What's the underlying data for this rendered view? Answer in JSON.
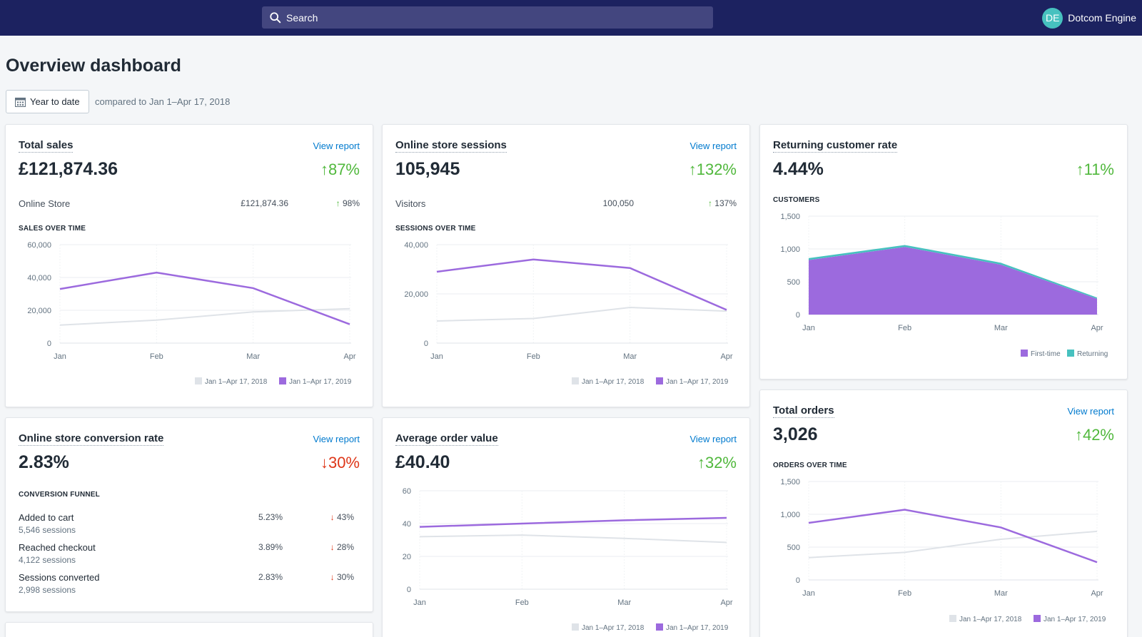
{
  "topbar": {
    "search_placeholder": "Search",
    "avatar_initials": "DE",
    "store_name": "Dotcom Engine"
  },
  "page": {
    "title": "Overview dashboard",
    "date_range_label": "Year to date",
    "compare_text": "compared to Jan 1–Apr 17, 2018"
  },
  "colors": {
    "current": "#9c6ade",
    "previous": "#dfe3e8",
    "returning": "#47c1bf",
    "up": "#50b83c",
    "down": "#de3618",
    "link": "#007ace",
    "topbar": "#1c2260"
  },
  "cards": {
    "total_sales": {
      "title": "Total sales",
      "link": "View report",
      "value": "£121,874.36",
      "change": "87%",
      "row_label": "Online Store",
      "row_value": "£121,874.36",
      "row_change": "98%",
      "section": "SALES OVER TIME"
    },
    "sessions": {
      "title": "Online store sessions",
      "link": "View report",
      "value": "105,945",
      "change": "132%",
      "row_label": "Visitors",
      "row_value": "100,050",
      "row_change": "137%",
      "section": "SESSIONS OVER TIME"
    },
    "returning": {
      "title": "Returning customer rate",
      "value": "4.44%",
      "change": "11%",
      "section": "CUSTOMERS"
    },
    "conversion": {
      "title": "Online store conversion rate",
      "link": "View report",
      "value": "2.83%",
      "change": "30%",
      "section": "CONVERSION FUNNEL",
      "funnel": [
        {
          "name": "Added to cart",
          "sessions": "5,546 sessions",
          "pct": "5.23%",
          "change": "43%"
        },
        {
          "name": "Reached checkout",
          "sessions": "4,122 sessions",
          "pct": "3.89%",
          "change": "28%"
        },
        {
          "name": "Sessions converted",
          "sessions": "2,998 sessions",
          "pct": "2.83%",
          "change": "30%"
        }
      ]
    },
    "aov": {
      "title": "Average order value",
      "link": "View report",
      "value": "£40.40",
      "change": "32%"
    },
    "orders": {
      "title": "Total orders",
      "link": "View report",
      "value": "3,026",
      "change": "42%",
      "section": "ORDERS OVER TIME"
    }
  },
  "chart_data": [
    {
      "id": "sales",
      "type": "line",
      "categories": [
        "Jan",
        "Feb",
        "Mar",
        "Apr"
      ],
      "yticks": [
        "0",
        "20,000",
        "40,000",
        "60,000"
      ],
      "ylim": [
        0,
        60000
      ],
      "series": [
        {
          "name": "Jan 1–Apr 17, 2018",
          "values": [
            11000,
            14000,
            19000,
            21000
          ]
        },
        {
          "name": "Jan 1–Apr 17, 2019",
          "values": [
            33000,
            43000,
            33500,
            11500
          ]
        }
      ],
      "legend": "bottom-right",
      "grid": true
    },
    {
      "id": "sessions",
      "type": "line",
      "categories": [
        "Jan",
        "Feb",
        "Mar",
        "Apr"
      ],
      "yticks": [
        "0",
        "20,000",
        "40,000"
      ],
      "ylim": [
        0,
        40000
      ],
      "series": [
        {
          "name": "Jan 1–Apr 17, 2018",
          "values": [
            9000,
            10000,
            14500,
            13000
          ]
        },
        {
          "name": "Jan 1–Apr 17, 2019",
          "values": [
            29000,
            34000,
            30500,
            13500
          ]
        }
      ],
      "legend": "bottom-right",
      "grid": true
    },
    {
      "id": "customers",
      "type": "area",
      "categories": [
        "Jan",
        "Feb",
        "Mar",
        "Apr"
      ],
      "yticks": [
        "0",
        "500",
        "1,000",
        "1,500"
      ],
      "ylim": [
        0,
        1500
      ],
      "series": [
        {
          "name": "First-time",
          "values": [
            830,
            1030,
            760,
            240
          ]
        },
        {
          "name": "Returning",
          "values": [
            30,
            30,
            30,
            20
          ]
        }
      ],
      "legend": "bottom-right",
      "grid": true
    },
    {
      "id": "aov",
      "type": "line",
      "categories": [
        "Jan",
        "Feb",
        "Mar",
        "Apr"
      ],
      "yticks": [
        "0",
        "20",
        "40",
        "60"
      ],
      "ylim": [
        0,
        60
      ],
      "series": [
        {
          "name": "Jan 1–Apr 17, 2018",
          "values": [
            32,
            33,
            31,
            28.5
          ]
        },
        {
          "name": "Jan 1–Apr 17, 2019",
          "values": [
            38,
            40,
            42,
            43.5
          ]
        }
      ],
      "legend": "bottom-right",
      "grid": true
    },
    {
      "id": "orders",
      "type": "line",
      "categories": [
        "Jan",
        "Feb",
        "Mar",
        "Apr"
      ],
      "yticks": [
        "0",
        "500",
        "1,000",
        "1,500"
      ],
      "ylim": [
        0,
        1500
      ],
      "series": [
        {
          "name": "Jan 1–Apr 17, 2018",
          "values": [
            340,
            420,
            620,
            740
          ]
        },
        {
          "name": "Jan 1–Apr 17, 2019",
          "values": [
            870,
            1070,
            800,
            270
          ]
        }
      ],
      "legend": "bottom-right",
      "grid": true
    }
  ]
}
